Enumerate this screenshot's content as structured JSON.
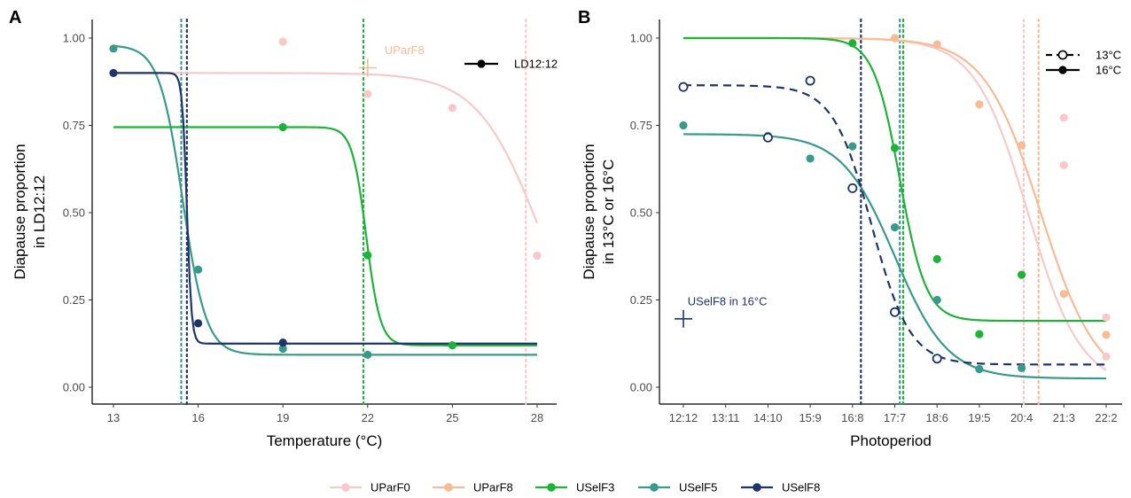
{
  "colors": {
    "UParF0": "#f8c9c9",
    "UParF8": "#f7bb95",
    "USelF3": "#1db33a",
    "USelF5": "#389a8a",
    "USelF8": "#1f356a"
  },
  "legend": {
    "items": [
      "UParF0",
      "UParF8",
      "USelF3",
      "USelF5",
      "USelF8"
    ]
  },
  "chart_data": [
    {
      "panel": "A",
      "type": "scatter",
      "xlabel": "Temperature (°C)",
      "ylabel_lines": [
        "Diapause proportion",
        "in LD12:12"
      ],
      "xlim": [
        13,
        28
      ],
      "ylim": [
        0,
        1
      ],
      "xticks": [
        13,
        16,
        19,
        22,
        25,
        28
      ],
      "xtick_labels": [
        "13",
        "16",
        "19",
        "22",
        "25",
        "28"
      ],
      "yticks": [
        0,
        0.25,
        0.5,
        0.75,
        1
      ],
      "ytick_labels": [
        "0.00",
        "0.25",
        "0.50",
        "0.75",
        "1.00"
      ],
      "inner_legend": [
        {
          "label": "LD12:12",
          "style": "solid-filled"
        }
      ],
      "annotations": [
        {
          "text": "UParF8",
          "x": 22.6,
          "y": 0.965,
          "series": "UParF8"
        }
      ],
      "series": [
        {
          "name": "UParF0",
          "points": [
            [
              19,
              0.99
            ],
            [
              22,
              0.84
            ],
            [
              25,
              0.8
            ],
            [
              28,
              0.377
            ]
          ],
          "curve": {
            "top": 0.9,
            "bottom": 0.0,
            "mid": 28.1,
            "k": 0.9,
            "xmin": 13,
            "xmax": 28
          },
          "vline": 27.6
        },
        {
          "name": "UParF8",
          "points": [],
          "cross": [
            22,
            0.915
          ],
          "vline": null
        },
        {
          "name": "USelF3",
          "points": [
            [
              19,
              0.745
            ],
            [
              22,
              0.378
            ],
            [
              25,
              0.12
            ]
          ],
          "curve": {
            "top": 0.745,
            "bottom": 0.12,
            "mid": 21.95,
            "k": 4,
            "xmin": 13,
            "xmax": 28
          },
          "vline": 21.85
        },
        {
          "name": "USelF5",
          "points": [
            [
              13,
              0.97
            ],
            [
              16,
              0.337
            ],
            [
              19,
              0.11
            ],
            [
              22,
              0.093
            ]
          ],
          "curve": {
            "top": 0.98,
            "bottom": 0.093,
            "mid": 15.45,
            "k": 2.4,
            "xmin": 13,
            "xmax": 28
          },
          "vline": 15.4
        },
        {
          "name": "USelF8",
          "points": [
            [
              13,
              0.9
            ],
            [
              16,
              0.183
            ],
            [
              19,
              0.128
            ]
          ],
          "curve": {
            "top": 0.9,
            "bottom": 0.125,
            "mid": 15.6,
            "k": 12,
            "xmin": 13,
            "xmax": 28
          },
          "vline": 15.6
        }
      ]
    },
    {
      "panel": "B",
      "type": "scatter",
      "xlabel": "Photoperiod",
      "ylabel_lines": [
        "Diapause proportion",
        "in 13°C or 16°C"
      ],
      "xlim": [
        0,
        10
      ],
      "ylim": [
        0,
        1
      ],
      "xticks": [
        0,
        1,
        2,
        3,
        4,
        5,
        6,
        7,
        8,
        9,
        10
      ],
      "xtick_labels": [
        "12:12",
        "13:11",
        "14:10",
        "15:9",
        "16:8",
        "17:7",
        "18:6",
        "19:5",
        "20:4",
        "21:3",
        "22:2"
      ],
      "yticks": [
        0,
        0.25,
        0.5,
        0.75,
        1
      ],
      "ytick_labels": [
        "0.00",
        "0.25",
        "0.50",
        "0.75",
        "1.00"
      ],
      "inner_legend": [
        {
          "label": "13°C",
          "style": "dashed-open"
        },
        {
          "label": "16°C",
          "style": "solid-filled"
        }
      ],
      "annotations": [
        {
          "text": "USelF8 in 16°C",
          "x": 0.1,
          "y": 0.245,
          "series": "USelF8"
        }
      ],
      "series": [
        {
          "name": "UParF0",
          "temp": "16°C",
          "points": [
            [
              9,
              0.772
            ],
            [
              9,
              0.636
            ],
            [
              10,
              0.088
            ],
            [
              10,
              0.2
            ]
          ],
          "curve": {
            "top": 1.0,
            "bottom": 0.0,
            "mid": 8.15,
            "k": 1.6,
            "xmin": 0,
            "xmax": 10
          },
          "vline": 8.05
        },
        {
          "name": "UParF8",
          "temp": "16°C",
          "points": [
            [
              5,
              1.0
            ],
            [
              6,
              0.982
            ],
            [
              7,
              0.81
            ],
            [
              8,
              0.693
            ],
            [
              9,
              0.267
            ],
            [
              10,
              0.15
            ]
          ],
          "curve": {
            "top": 1.0,
            "bottom": 0.0,
            "mid": 8.45,
            "k": 1.5,
            "xmin": 0,
            "xmax": 10
          },
          "vline": 8.4
        },
        {
          "name": "USelF3",
          "temp": "16°C",
          "points": [
            [
              4,
              0.985
            ],
            [
              5,
              0.685
            ],
            [
              6,
              0.367
            ],
            [
              7,
              0.152
            ],
            [
              8,
              0.322
            ]
          ],
          "curve": {
            "top": 1.0,
            "bottom": 0.19,
            "mid": 5.12,
            "k": 3.2,
            "xmin": 0,
            "xmax": 10
          },
          "vline": 5.2
        },
        {
          "name": "USelF5",
          "temp": "16°C",
          "points": [
            [
              0,
              0.75
            ],
            [
              2,
              0.72
            ],
            [
              3,
              0.655
            ],
            [
              4,
              0.69
            ],
            [
              5,
              0.458
            ],
            [
              6,
              0.25
            ],
            [
              7,
              0.052
            ],
            [
              8,
              0.055
            ]
          ],
          "curve": {
            "top": 0.725,
            "bottom": 0.025,
            "mid": 5.0,
            "k": 1.6,
            "xmin": 0,
            "xmax": 10
          },
          "vline": 5.12
        },
        {
          "name": "USelF8",
          "temp": "13°C",
          "points": [
            [
              0,
              0.86
            ],
            [
              2,
              0.715
            ],
            [
              3,
              0.878
            ],
            [
              4,
              0.57
            ],
            [
              5,
              0.215
            ],
            [
              6,
              0.082
            ]
          ],
          "curve": {
            "top": 0.865,
            "bottom": 0.065,
            "mid": 4.45,
            "k": 2.2,
            "xmin": 0,
            "xmax": 10,
            "dashed": true
          },
          "cross": [
            0,
            0.196
          ],
          "vline": 4.2
        }
      ]
    }
  ]
}
